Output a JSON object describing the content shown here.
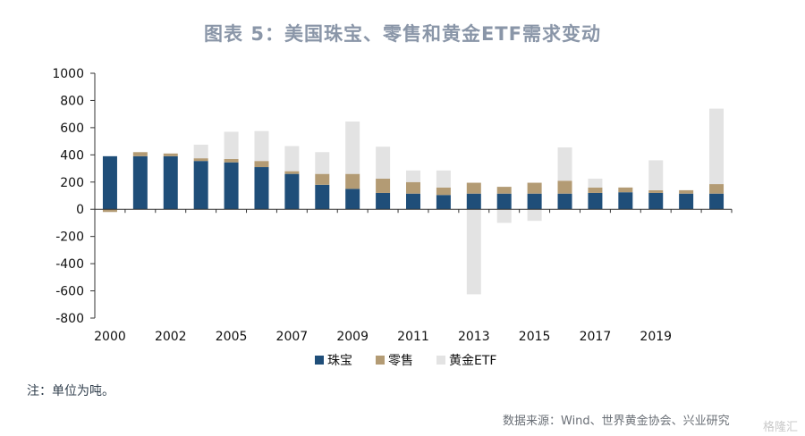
{
  "page": {
    "title": "图表 5：美国珠宝、零售和黄金ETF需求变动",
    "note": "注：单位为吨。",
    "source": "数据来源：Wind、世界黄金协会、兴业研究",
    "watermark": "格隆汇"
  },
  "chart_data": {
    "type": "bar",
    "stacked": true,
    "title": "图表 5：美国珠宝、零售和黄金ETF需求变动",
    "xlabel": "",
    "ylabel": "",
    "ylim": [
      -800,
      1000
    ],
    "yticks": [
      -800,
      -600,
      -400,
      -200,
      0,
      200,
      400,
      600,
      800,
      1000
    ],
    "categories": [
      "2000",
      "2001",
      "2002",
      "2003",
      "2004",
      "2005",
      "2006",
      "2007",
      "2008",
      "2009",
      "2010",
      "2011",
      "2012",
      "2013",
      "2014",
      "2015",
      "2016",
      "2017",
      "2018",
      "2019",
      "2020"
    ],
    "tick_labels": [
      "2000",
      "2002",
      "2005",
      "2007",
      "2009",
      "2011",
      "2013",
      "2015",
      "2017",
      "2019"
    ],
    "tick_label_positions": [
      "2000",
      "2002",
      "2004",
      "2006",
      "2008",
      "2010",
      "2012",
      "2014",
      "2016",
      "2018"
    ],
    "legend_position": "bottom",
    "series": [
      {
        "name": "珠宝",
        "color": "#1f4e79",
        "values": [
          390,
          390,
          390,
          355,
          345,
          310,
          260,
          180,
          150,
          120,
          115,
          105,
          115,
          115,
          115,
          115,
          120,
          125,
          120,
          115,
          115
        ]
      },
      {
        "name": "零售",
        "color": "#b39b74",
        "values": [
          -20,
          30,
          20,
          20,
          25,
          45,
          20,
          80,
          110,
          105,
          85,
          55,
          80,
          50,
          80,
          95,
          40,
          35,
          20,
          25,
          70
        ]
      },
      {
        "name": "黄金ETF",
        "color": "#e3e3e3",
        "values": [
          0,
          0,
          0,
          100,
          200,
          220,
          185,
          160,
          385,
          235,
          85,
          125,
          -625,
          -100,
          -85,
          245,
          65,
          0,
          220,
          0,
          555
        ]
      }
    ]
  }
}
